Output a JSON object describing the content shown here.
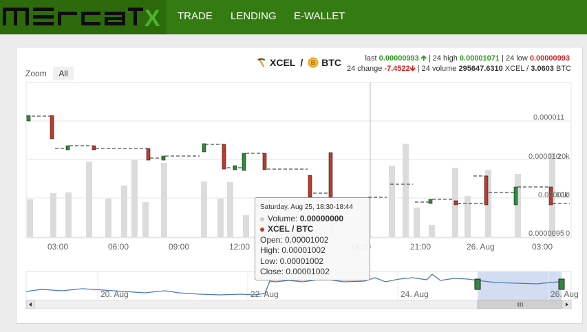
{
  "header": {
    "logo_text": "MERCATOX",
    "nav": [
      "TRADE",
      "LENDING",
      "E-WALLET"
    ]
  },
  "pair": {
    "base": "XCEL",
    "sep": "/",
    "quote": "BTC"
  },
  "stats": {
    "last_label": "last",
    "last_value": "0.00000993",
    "high_label": "| 24 high",
    "high_value": "0.00001071",
    "low_label": "| 24 low",
    "low_value": "0.00000993",
    "change_label": "24 change",
    "change_value": "-7.4522",
    "volume_label": "| 24 volume",
    "volume_value": "295647.6310",
    "volume_unit": "XCEL / ",
    "volume_btc": "3.0603",
    "volume_btc_unit": "BTC"
  },
  "zoom": {
    "label": "Zoom",
    "button": "All"
  },
  "chart": {
    "y_labels": [
      "0.000011",
      "0.000010",
      "0.000010",
      "0.0000095"
    ],
    "y_vol_labels": [
      "20k",
      "10k",
      "0"
    ],
    "x_labels": [
      "03:00",
      "06:00",
      "09:00",
      "12:00",
      "18:00",
      "21:00",
      "26. Aug",
      "03:00"
    ],
    "nav_labels": [
      "20. Aug",
      "22. Aug",
      "24. Aug",
      "26. Aug"
    ]
  },
  "tooltip": {
    "header": "Saturday, Aug 25, 18:30-18:44",
    "volume_label": "Volume:",
    "volume_value": "0.00000000",
    "series": "XCEL / BTC",
    "open": "Open: 0.00001002",
    "high": "High: 0.00001002",
    "low": "Low: 0.00001002",
    "close": "Close: 0.00001002"
  },
  "colors": {
    "bar_green": "#347b11",
    "up": "#2a9a1a",
    "down": "#d42020",
    "candle_up": "#2f8a3a",
    "candle_down": "#c0392b"
  },
  "icons": {
    "scroll_left": "left-arrow-icon",
    "scroll_right": "right-arrow-icon"
  }
}
